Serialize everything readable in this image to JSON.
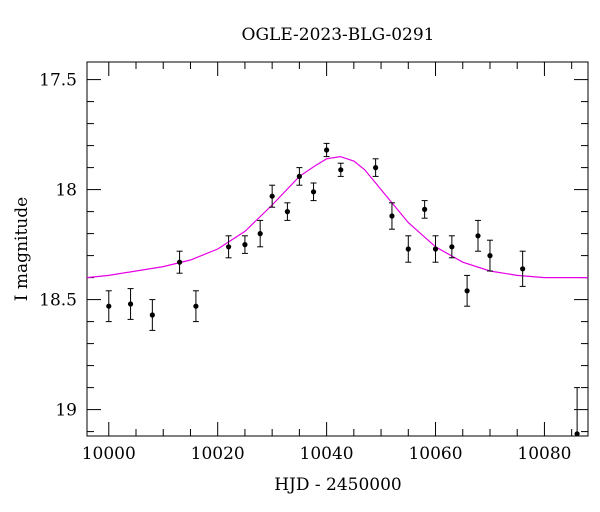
{
  "chart_data": {
    "type": "scatter",
    "title": "OGLE-2023-BLG-0291",
    "xlabel": "HJD - 2450000",
    "ylabel": "I magnitude",
    "xlim": [
      9996,
      10088
    ],
    "ylim": [
      19.12,
      17.42
    ],
    "y_inverted": true,
    "grid": false,
    "x_ticks": [
      {
        "value": 10000,
        "label": "10000"
      },
      {
        "value": 10020,
        "label": "10020"
      },
      {
        "value": 10040,
        "label": "10040"
      },
      {
        "value": 10060,
        "label": "10060"
      },
      {
        "value": 10080,
        "label": "10080"
      }
    ],
    "y_ticks": [
      {
        "value": 17.5,
        "label": "17.5"
      },
      {
        "value": 18.0,
        "label": "18"
      },
      {
        "value": 18.5,
        "label": "18.5"
      },
      {
        "value": 19.0,
        "label": "19"
      }
    ],
    "colors": {
      "points": "#000000",
      "model": "#e600e6"
    },
    "observations": [
      {
        "x": 10000.0,
        "y": 18.53,
        "err": 0.07
      },
      {
        "x": 10004.0,
        "y": 18.52,
        "err": 0.07
      },
      {
        "x": 10008.0,
        "y": 18.57,
        "err": 0.07
      },
      {
        "x": 10013.0,
        "y": 18.33,
        "err": 0.05
      },
      {
        "x": 10016.0,
        "y": 18.53,
        "err": 0.07
      },
      {
        "x": 10022.0,
        "y": 18.26,
        "err": 0.05
      },
      {
        "x": 10025.0,
        "y": 18.25,
        "err": 0.04
      },
      {
        "x": 10027.8,
        "y": 18.2,
        "err": 0.06
      },
      {
        "x": 10030.0,
        "y": 18.03,
        "err": 0.05
      },
      {
        "x": 10032.8,
        "y": 18.1,
        "err": 0.04
      },
      {
        "x": 10035.0,
        "y": 17.94,
        "err": 0.04
      },
      {
        "x": 10037.6,
        "y": 18.01,
        "err": 0.04
      },
      {
        "x": 10040.0,
        "y": 17.82,
        "err": 0.03
      },
      {
        "x": 10042.6,
        "y": 17.91,
        "err": 0.03
      },
      {
        "x": 10049.0,
        "y": 17.9,
        "err": 0.04
      },
      {
        "x": 10052.0,
        "y": 18.12,
        "err": 0.06
      },
      {
        "x": 10055.0,
        "y": 18.27,
        "err": 0.06
      },
      {
        "x": 10058.0,
        "y": 18.09,
        "err": 0.04
      },
      {
        "x": 10060.0,
        "y": 18.27,
        "err": 0.06
      },
      {
        "x": 10063.0,
        "y": 18.26,
        "err": 0.05
      },
      {
        "x": 10065.8,
        "y": 18.46,
        "err": 0.07
      },
      {
        "x": 10067.8,
        "y": 18.21,
        "err": 0.07
      },
      {
        "x": 10070.0,
        "y": 18.3,
        "err": 0.07
      },
      {
        "x": 10076.0,
        "y": 18.36,
        "err": 0.08
      },
      {
        "x": 10086.0,
        "y": 19.11,
        "err": 0.21
      }
    ],
    "model_curve": {
      "description": "magenta microlensing fit",
      "x": [
        9996,
        10000,
        10005,
        10010,
        10015,
        10020,
        10025,
        10030,
        10035,
        10038,
        10040,
        10042.5,
        10045,
        10047,
        10050,
        10055,
        10060,
        10065,
        10070,
        10075,
        10080,
        10085,
        10088
      ],
      "y": [
        18.4,
        18.39,
        18.37,
        18.35,
        18.32,
        18.27,
        18.19,
        18.07,
        17.94,
        17.89,
        17.86,
        17.85,
        17.87,
        17.91,
        18.0,
        18.15,
        18.26,
        18.33,
        18.37,
        18.39,
        18.4,
        18.4,
        18.4
      ]
    }
  }
}
